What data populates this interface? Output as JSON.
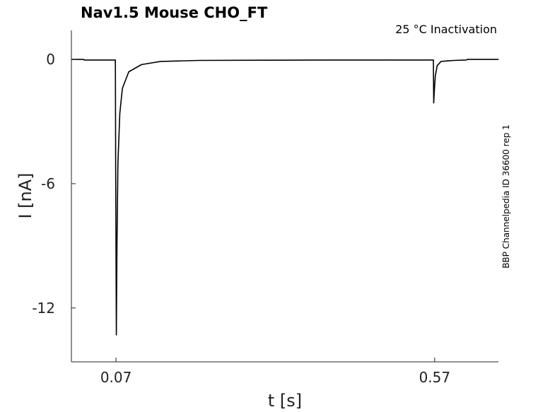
{
  "chart_data": {
    "type": "line",
    "title": "Nav1.5  Mouse  CHO_FT",
    "annotation": "25 °C  Inactivation",
    "side_label": "BBP Channelpedia ID 36600 rep 1",
    "xlabel": "t [s]",
    "ylabel": "I [nA]",
    "xlim": [
      0.0,
      0.67
    ],
    "ylim": [
      -14.6,
      1.4
    ],
    "xticks": [
      0.07,
      0.57
    ],
    "xtick_labels": [
      "0.07",
      "0.57"
    ],
    "yticks": [
      0,
      -6,
      -12
    ],
    "ytick_labels": [
      "0",
      "-6",
      "-12"
    ],
    "grid": false,
    "series": [
      {
        "color": "#000000",
        "description_points": {
          "x": [
            0.0,
            0.019,
            0.02,
            0.069,
            0.0695,
            0.0705,
            0.0715,
            0.073,
            0.076,
            0.08,
            0.09,
            0.11,
            0.14,
            0.2,
            0.3,
            0.4,
            0.5,
            0.568,
            0.5685,
            0.5695,
            0.571,
            0.574,
            0.58,
            0.6,
            0.62,
            0.621,
            0.67
          ],
          "y": [
            0.0,
            0.0,
            -0.03,
            -0.03,
            -5.5,
            -13.3,
            -9.0,
            -5.0,
            -2.6,
            -1.4,
            -0.6,
            -0.25,
            -0.1,
            -0.05,
            -0.04,
            -0.03,
            -0.03,
            -0.03,
            -2.1,
            -1.5,
            -0.8,
            -0.3,
            -0.1,
            -0.05,
            -0.03,
            0.0,
            0.0
          ]
        }
      }
    ]
  }
}
